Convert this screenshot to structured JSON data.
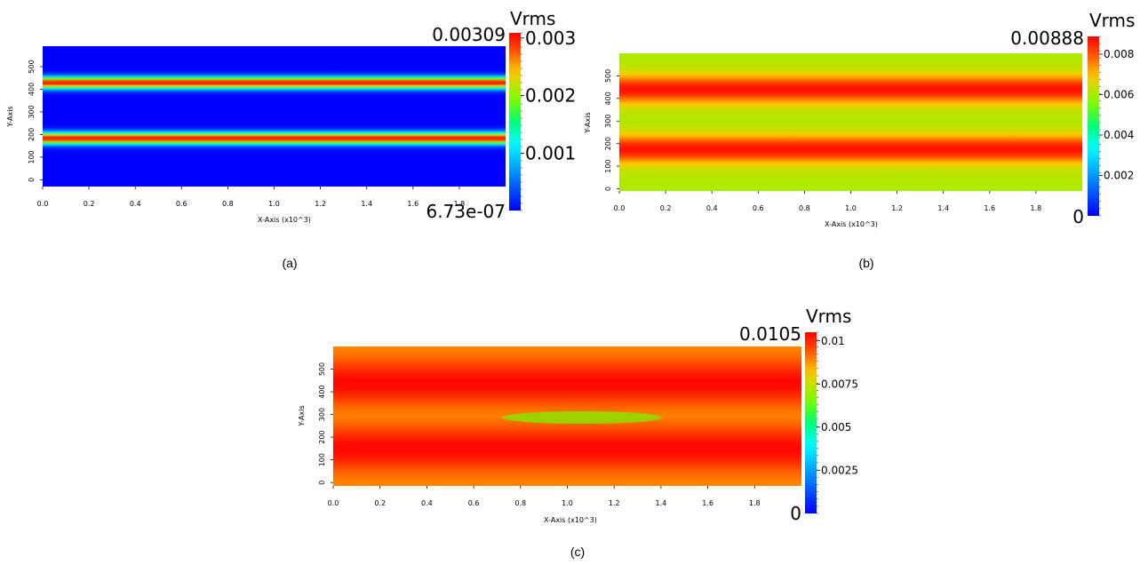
{
  "chart_data": [
    {
      "type": "heatmap",
      "caption": "(a)",
      "xlabel": "X-Axis (x10^3)",
      "ylabel": "Y-Axis",
      "xlim": [
        0,
        2.0
      ],
      "ylim": [
        -30,
        590
      ],
      "x_ticks": [
        "0.0",
        "0.2",
        "0.4",
        "0.6",
        "0.8",
        "1.0",
        "1.2",
        "1.4",
        "1.6",
        "1.8"
      ],
      "y_ticks": [
        "0",
        "100",
        "200",
        "300",
        "400",
        "500"
      ],
      "colorbar": {
        "title": "Vrms",
        "max_label": "0.00309",
        "min_label": "6.73e-07",
        "range": [
          6.73e-07,
          0.00309
        ],
        "ticks": [
          "0.003",
          "0.002",
          "0.001"
        ],
        "tick_values": [
          0.003,
          0.002,
          0.001
        ],
        "colormap": "blue-cyan-green-yellow-red"
      },
      "field": {
        "background": 0.0,
        "bands": [
          {
            "y_center": 428,
            "peak": 0.00305
          },
          {
            "y_center": 183,
            "peak": 0.00305
          }
        ]
      }
    },
    {
      "type": "heatmap",
      "caption": "(b)",
      "xlabel": "X-Axis (x10^3)",
      "ylabel": "Y-Axis",
      "xlim": [
        0,
        2.0
      ],
      "ylim": [
        -10,
        600
      ],
      "x_ticks": [
        "0.0",
        "0.2",
        "0.4",
        "0.6",
        "0.8",
        "1.0",
        "1.2",
        "1.4",
        "1.6",
        "1.8"
      ],
      "y_ticks": [
        "0",
        "100",
        "200",
        "300",
        "400",
        "500"
      ],
      "colorbar": {
        "title": "Vrms",
        "max_label": "0.00888",
        "min_label": "0",
        "range": [
          0,
          0.00888
        ],
        "ticks": [
          "0.008",
          "0.006",
          "0.004",
          "0.002"
        ],
        "tick_values": [
          0.008,
          0.006,
          0.004,
          0.002
        ],
        "colormap": "blue-cyan-green-yellow-red"
      },
      "field": {
        "background": 0.0061,
        "bands": [
          {
            "y_center": 440,
            "peak": 0.0087
          },
          {
            "y_center": 175,
            "peak": 0.0087
          }
        ]
      }
    },
    {
      "type": "heatmap",
      "caption": "(c)",
      "xlabel": "X-Axis (x10^3)",
      "ylabel": "Y-Axis",
      "xlim": [
        0,
        2.0
      ],
      "ylim": [
        -15,
        600
      ],
      "x_ticks": [
        "0.0",
        "0.2",
        "0.4",
        "0.6",
        "0.8",
        "1.0",
        "1.2",
        "1.4",
        "1.6",
        "1.8"
      ],
      "y_ticks": [
        "0",
        "100",
        "200",
        "300",
        "400",
        "500"
      ],
      "colorbar": {
        "title": "Vrms",
        "max_label": "0.0105",
        "min_label": "0",
        "range": [
          0,
          0.0105
        ],
        "ticks": [
          "0.01",
          "0.0075",
          "0.005",
          "0.0025"
        ],
        "tick_values": [
          0.01,
          0.0075,
          0.005,
          0.0025
        ],
        "colormap": "blue-cyan-green-yellow-red"
      },
      "field": {
        "background": 0.0088,
        "bands": [
          {
            "y_center": 440,
            "peak": 0.0104
          },
          {
            "y_center": 150,
            "peak": 0.0104
          }
        ]
      }
    }
  ]
}
